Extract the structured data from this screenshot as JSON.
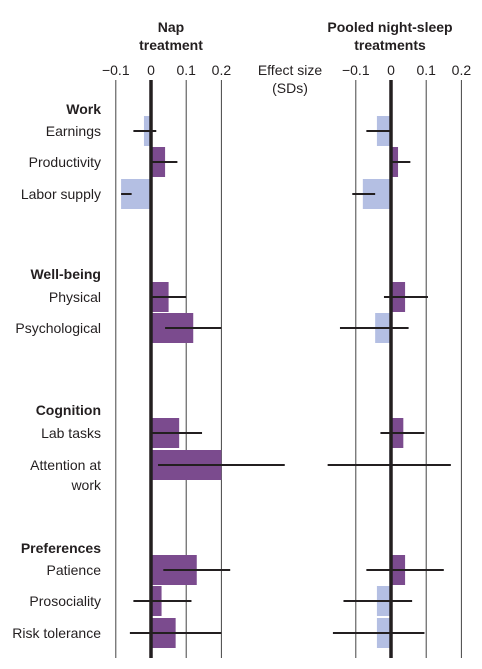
{
  "chart_data": {
    "type": "bar",
    "orientation": "horizontal",
    "error_bars": true,
    "effect_label": [
      "Effect size",
      "(SDs)"
    ],
    "tick_values": [
      -0.1,
      0,
      0.1,
      0.2
    ],
    "tick_labels": [
      "−0.1",
      "0",
      "0.1",
      "0.2"
    ],
    "xlim": [
      -0.1,
      0.2
    ],
    "colors": {
      "positive": "#7b4b8e",
      "negative": "#b4bfe3",
      "axis": "#231f20",
      "grid": "#444444"
    },
    "groups": [
      {
        "name": "Work",
        "rows": [
          {
            "label": [
              "Earnings"
            ],
            "key": "earnings"
          },
          {
            "label": [
              "Productivity"
            ],
            "key": "productivity"
          },
          {
            "label": [
              "Labor supply"
            ],
            "key": "labor_supply"
          }
        ]
      },
      {
        "name": "Well-being",
        "rows": [
          {
            "label": [
              "Physical"
            ],
            "key": "physical"
          },
          {
            "label": [
              "Psychological"
            ],
            "key": "psychological"
          }
        ]
      },
      {
        "name": "Cognition",
        "rows": [
          {
            "label": [
              "Lab tasks"
            ],
            "key": "lab_tasks"
          },
          {
            "label": [
              "Attention at",
              "work"
            ],
            "key": "attention_at_work"
          }
        ]
      },
      {
        "name": "Preferences",
        "rows": [
          {
            "label": [
              "Patience"
            ],
            "key": "patience"
          },
          {
            "label": [
              "Prosociality"
            ],
            "key": "prosociality"
          },
          {
            "label": [
              "Risk tolerance"
            ],
            "key": "risk_tolerance"
          }
        ]
      }
    ],
    "panels": [
      {
        "title": [
          "Nap",
          "treatment"
        ],
        "values": {
          "earnings": {
            "value": -0.02,
            "ci": [
              -0.05,
              0.015
            ]
          },
          "productivity": {
            "value": 0.04,
            "ci": [
              0.0,
              0.075
            ]
          },
          "labor_supply": {
            "value": -0.085,
            "ci": [
              -0.085,
              -0.055
            ]
          },
          "physical": {
            "value": 0.05,
            "ci": [
              0.0,
              0.1
            ]
          },
          "psychological": {
            "value": 0.12,
            "ci": [
              0.04,
              0.2
            ]
          },
          "lab_tasks": {
            "value": 0.08,
            "ci": [
              0.0,
              0.145
            ]
          },
          "attention_at_work": {
            "value": 0.2,
            "ci": [
              0.02,
              0.38
            ]
          },
          "patience": {
            "value": 0.13,
            "ci": [
              0.035,
              0.225
            ]
          },
          "prosociality": {
            "value": 0.03,
            "ci": [
              -0.05,
              0.115
            ]
          },
          "risk_tolerance": {
            "value": 0.07,
            "ci": [
              -0.06,
              0.2
            ]
          }
        }
      },
      {
        "title": [
          "Pooled night-sleep",
          "treatments"
        ],
        "values": {
          "earnings": {
            "value": -0.04,
            "ci": [
              -0.07,
              0.0
            ]
          },
          "productivity": {
            "value": 0.02,
            "ci": [
              0.0,
              0.055
            ]
          },
          "labor_supply": {
            "value": -0.08,
            "ci": [
              -0.11,
              -0.045
            ]
          },
          "physical": {
            "value": 0.04,
            "ci": [
              -0.02,
              0.105
            ]
          },
          "psychological": {
            "value": -0.045,
            "ci": [
              -0.145,
              0.05
            ]
          },
          "lab_tasks": {
            "value": 0.035,
            "ci": [
              -0.03,
              0.095
            ]
          },
          "attention_at_work": {
            "value": -0.005,
            "ci": [
              -0.18,
              0.17
            ]
          },
          "patience": {
            "value": 0.04,
            "ci": [
              -0.07,
              0.15
            ]
          },
          "prosociality": {
            "value": -0.04,
            "ci": [
              -0.135,
              0.06
            ]
          },
          "risk_tolerance": {
            "value": -0.04,
            "ci": [
              -0.165,
              0.095
            ]
          }
        }
      }
    ]
  }
}
